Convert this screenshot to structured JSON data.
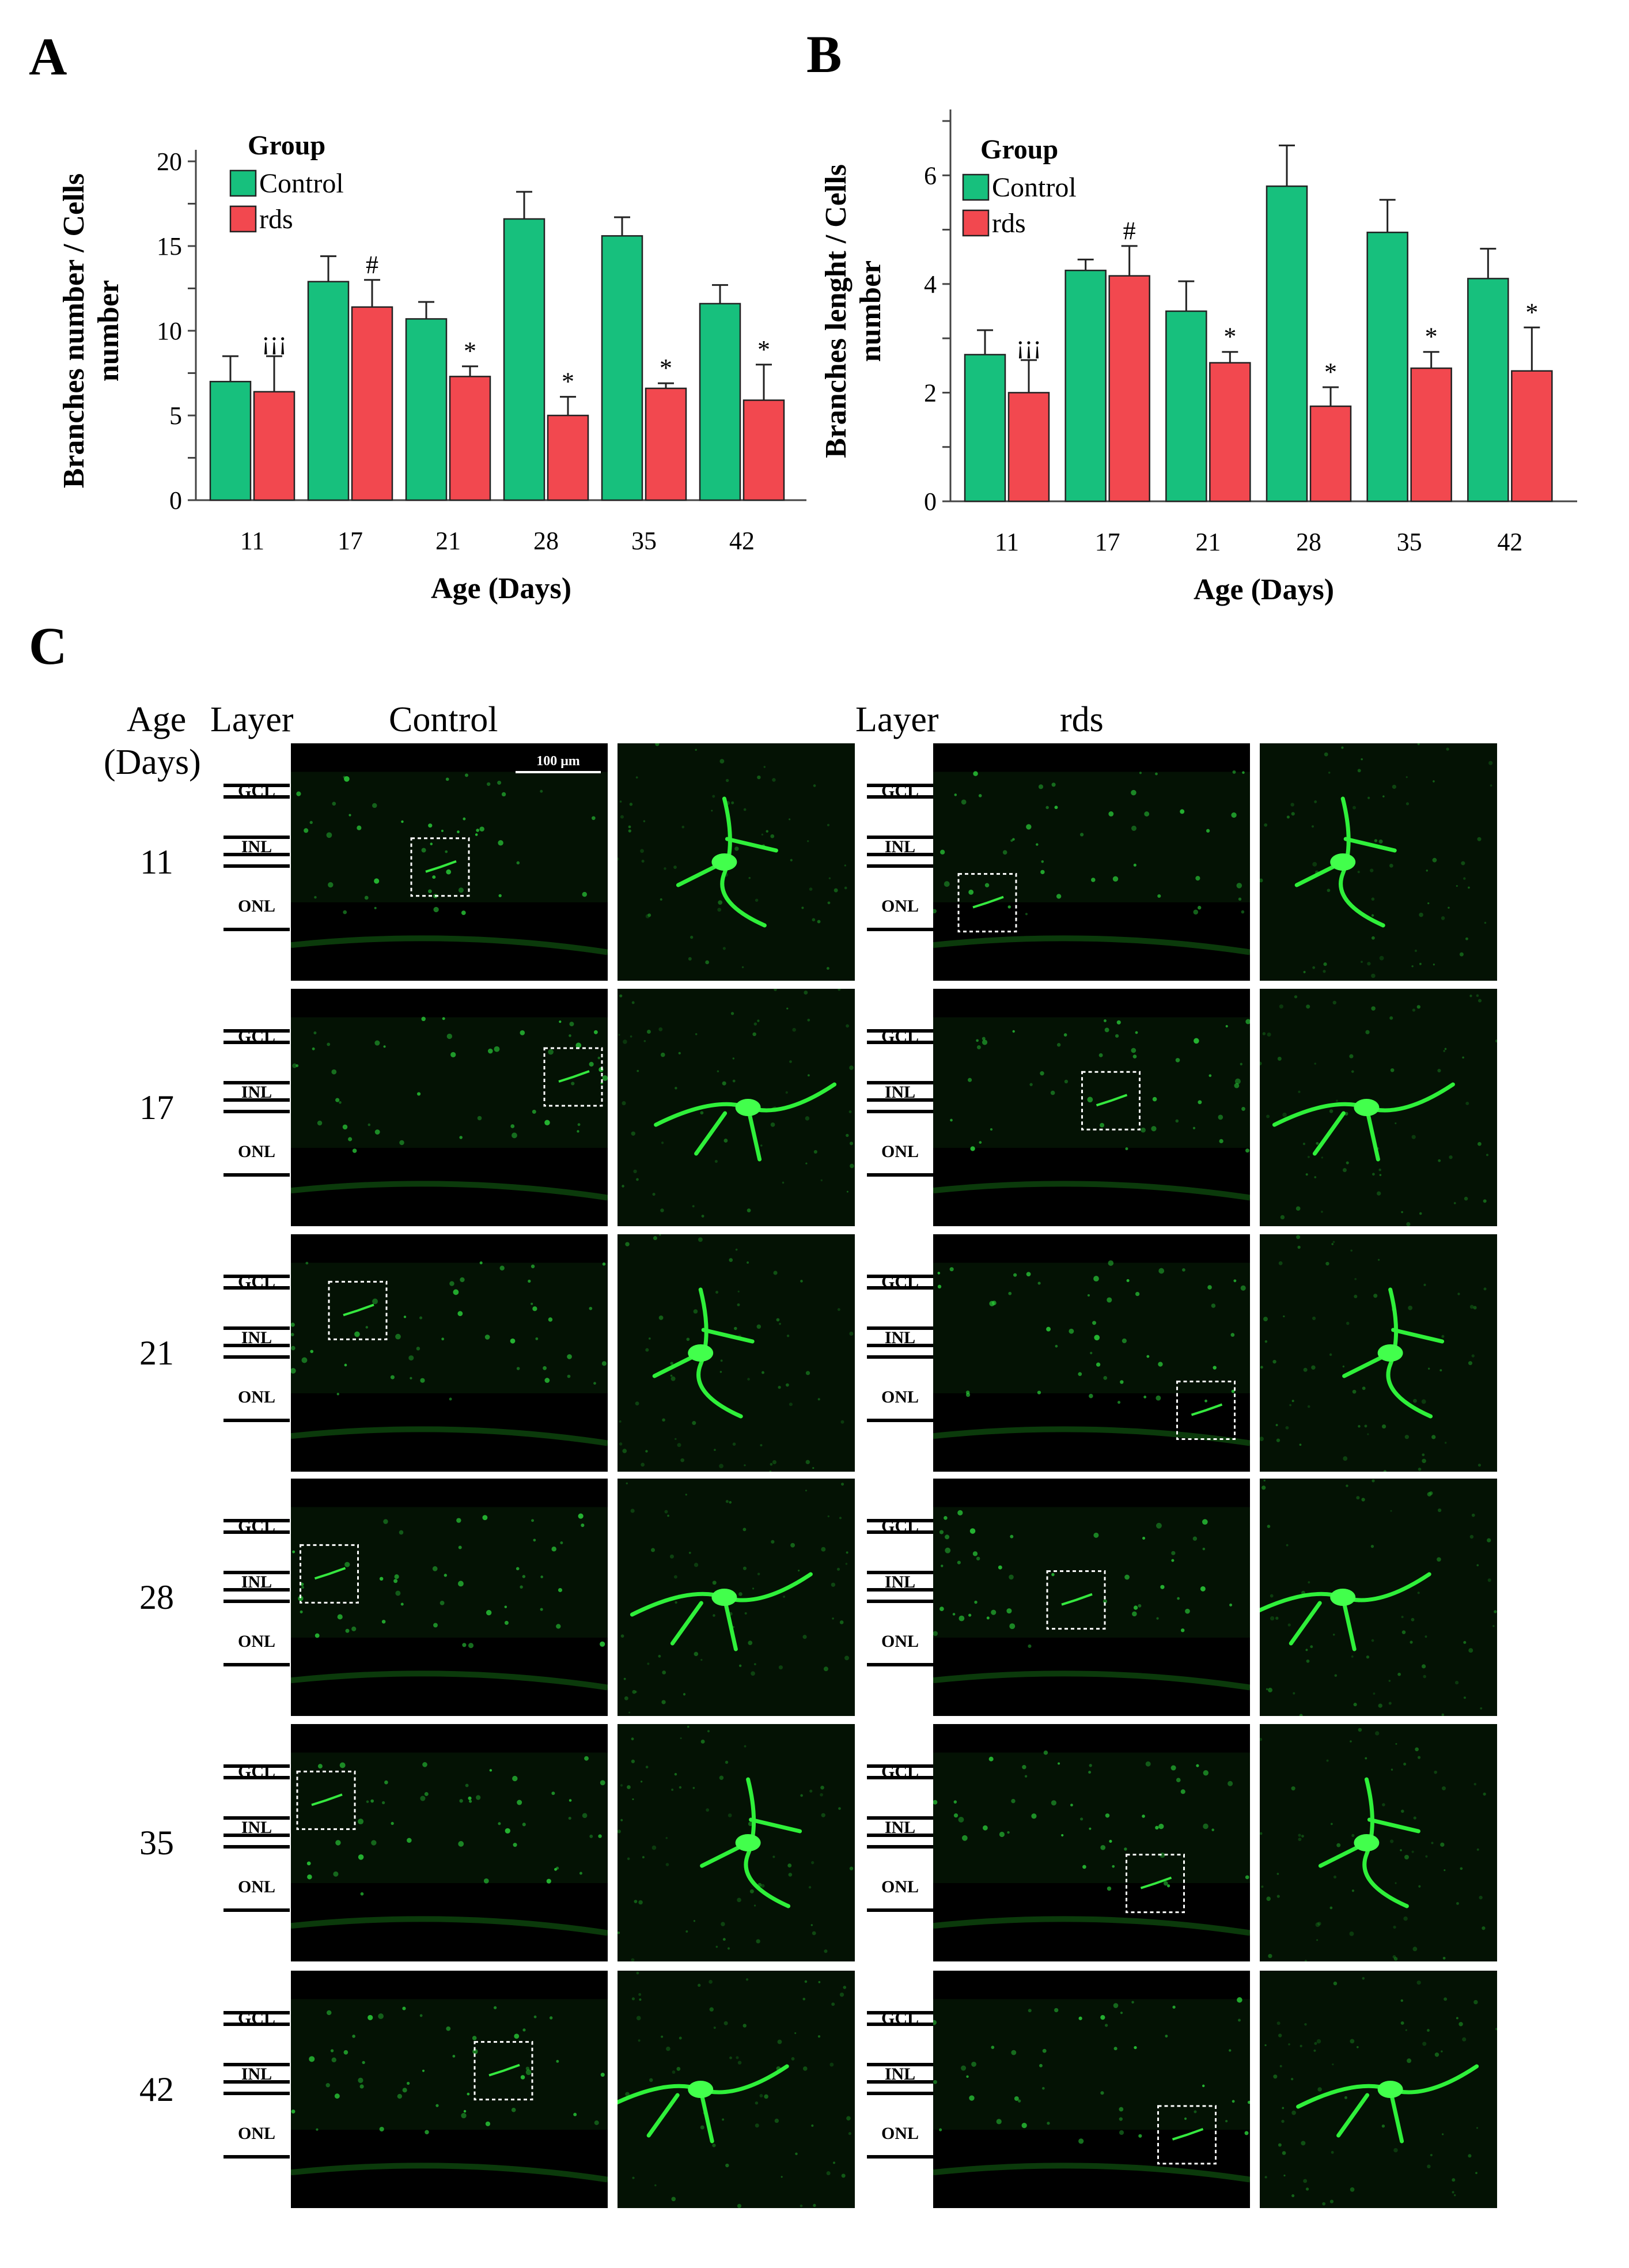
{
  "panels": {
    "a": "A",
    "b": "B",
    "c": "C"
  },
  "chart_data": [
    {
      "type": "bar",
      "categories": [
        "11",
        "17",
        "21",
        "28",
        "35",
        "42"
      ],
      "series": [
        {
          "name": "Control",
          "color": "#17c07d",
          "values": [
            7.0,
            12.9,
            10.7,
            16.6,
            15.6,
            11.6
          ],
          "errors": [
            1.5,
            1.5,
            1.0,
            1.6,
            1.1,
            1.1
          ]
        },
        {
          "name": "rds",
          "color": "#f2484f",
          "values": [
            6.4,
            11.4,
            7.3,
            5.0,
            6.6,
            5.9
          ],
          "errors": [
            2.1,
            1.6,
            0.6,
            1.1,
            0.3,
            2.1
          ]
        }
      ],
      "annotations": [
        "¡¡¡",
        "#",
        "*",
        "*",
        "*",
        "*"
      ],
      "legend_title": "Group",
      "xlabel": "Age (Days)",
      "ylabel": [
        "Branches number / Cells",
        "number"
      ],
      "ylim": [
        0,
        20
      ],
      "yticks": [
        0,
        5,
        10,
        15,
        20
      ],
      "grid": false,
      "legend_position": "top-left"
    },
    {
      "type": "bar",
      "categories": [
        "11",
        "17",
        "21",
        "28",
        "35",
        "42"
      ],
      "series": [
        {
          "name": "Control",
          "color": "#17c07d",
          "values": [
            2.7,
            4.25,
            3.5,
            5.8,
            4.95,
            4.1
          ],
          "errors": [
            0.45,
            0.2,
            0.55,
            0.75,
            0.6,
            0.55
          ]
        },
        {
          "name": "rds",
          "color": "#f2484f",
          "values": [
            2.0,
            4.15,
            2.55,
            1.75,
            2.45,
            2.4
          ],
          "errors": [
            0.6,
            0.55,
            0.2,
            0.35,
            0.3,
            0.8
          ]
        }
      ],
      "annotations": [
        "¡¡¡",
        "#",
        "*",
        "*",
        "*",
        "*"
      ],
      "legend_title": "Group",
      "xlabel": "Age (Days)",
      "ylabel": [
        "Branches lenght / Cells",
        "number"
      ],
      "ylim": [
        0,
        7
      ],
      "yticks": [
        0,
        2,
        4,
        6
      ],
      "grid": false,
      "legend_position": "top-left"
    }
  ],
  "panel_c": {
    "headers": {
      "age": "Age",
      "days": "(Days)",
      "layer_left": "Layer",
      "control": "Control",
      "layer_right": "Layer",
      "rds": "rds"
    },
    "scale_bar": "100 μm",
    "layers": [
      "GCL",
      "INL",
      "ONL"
    ],
    "ages": [
      "11",
      "17",
      "21",
      "28",
      "35",
      "42"
    ]
  }
}
